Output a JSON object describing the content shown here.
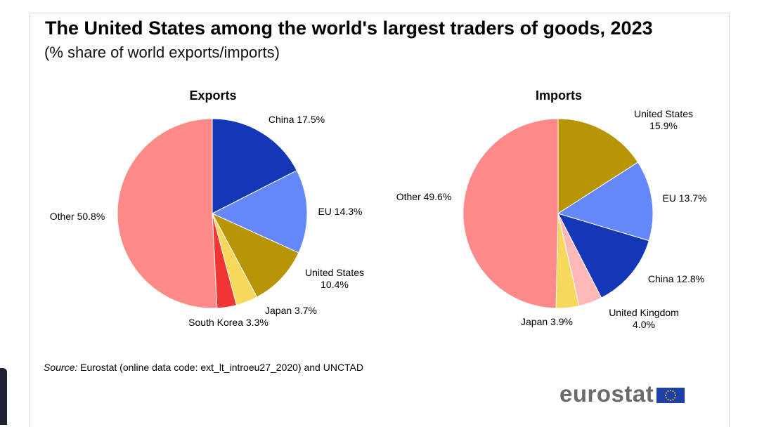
{
  "title": "The United States among the world's largest traders of goods, 2023",
  "subtitle": "(% share of world exports/imports)",
  "source": {
    "label": "Source:",
    "text": "Eurostat (online data code: ext_lt_introeu27_2020) and UNCTAD"
  },
  "logo": {
    "text": "eurostat",
    "icon": "eu-flag-icon"
  },
  "chart_data": [
    {
      "type": "pie",
      "title": "Exports",
      "slices": [
        {
          "label": "China",
          "value_label": "17.5%",
          "value": 17.5,
          "color": "#1437b8"
        },
        {
          "label": "EU",
          "value_label": "14.3%",
          "value": 14.3,
          "color": "#6487fa"
        },
        {
          "label": "United States",
          "value_label": "10.4%",
          "value": 10.4,
          "color": "#b89506"
        },
        {
          "label": "Japan",
          "value_label": "3.7%",
          "value": 3.7,
          "color": "#f6d85c"
        },
        {
          "label": "South Korea",
          "value_label": "3.3%",
          "value": 3.3,
          "color": "#f03535"
        },
        {
          "label": "Other",
          "value_label": "50.8%",
          "value": 50.8,
          "color": "#fd8a88"
        }
      ]
    },
    {
      "type": "pie",
      "title": "Imports",
      "slices": [
        {
          "label": "United States",
          "value_label": "15.9%",
          "value": 15.9,
          "color": "#b89506"
        },
        {
          "label": "EU",
          "value_label": "13.7%",
          "value": 13.7,
          "color": "#6487fa"
        },
        {
          "label": "China",
          "value_label": "12.8%",
          "value": 12.8,
          "color": "#1437b8"
        },
        {
          "label": "United Kingdom",
          "value_label": "4.0%",
          "value": 4.0,
          "color": "#ffb8b8"
        },
        {
          "label": "Japan",
          "value_label": "3.9%",
          "value": 3.9,
          "color": "#f6d85c"
        },
        {
          "label": "Other",
          "value_label": "49.6%",
          "value": 49.6,
          "color": "#fd8a88"
        }
      ]
    }
  ]
}
